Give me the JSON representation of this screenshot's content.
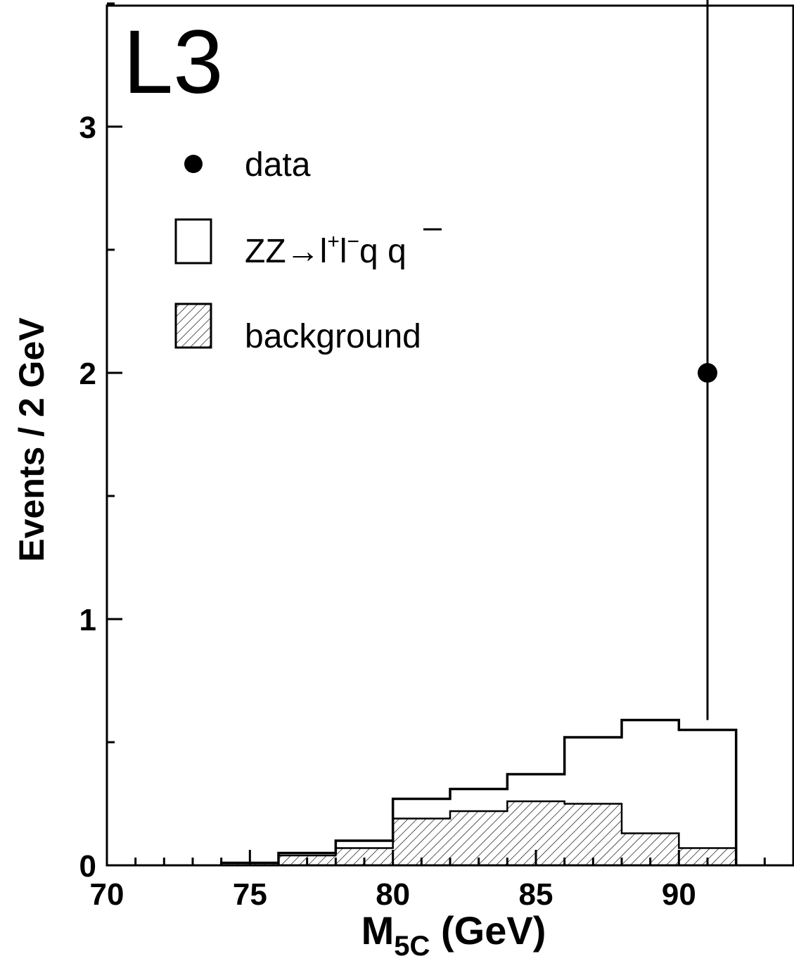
{
  "chart_data": {
    "type": "bar",
    "experiment_label": "L3",
    "xlabel": "M",
    "xlabel_sub": "5C",
    "xlabel_unit": " (GeV)",
    "ylabel": "Events / 2 GeV",
    "xlim": [
      70,
      94
    ],
    "ylim": [
      0,
      3.5
    ],
    "x_ticks": [
      70,
      75,
      80,
      85,
      90
    ],
    "y_ticks": [
      0,
      1,
      2,
      3
    ],
    "grid": false,
    "legend_position": "top-left",
    "legend": {
      "data": "data",
      "signal": {
        "main": "ZZ→l",
        "sup1": "+",
        "mid": "l",
        "sup2": "−",
        "end": "q q",
        "bar_char": "q"
      },
      "background": "background"
    },
    "bin_edges": [
      70,
      72,
      74,
      76,
      78,
      80,
      82,
      84,
      86,
      88,
      90,
      92
    ],
    "series": [
      {
        "name": "ZZ→l+l−q q̄",
        "style": "open",
        "values": [
          0,
          0,
          0.01,
          0.05,
          0.1,
          0.27,
          0.31,
          0.37,
          0.52,
          0.59,
          0.55
        ]
      },
      {
        "name": "background",
        "style": "hatched",
        "values": [
          0,
          0,
          0.01,
          0.04,
          0.07,
          0.19,
          0.22,
          0.26,
          0.25,
          0.13,
          0.07
        ]
      }
    ],
    "data_points": [
      {
        "x": 91,
        "y": 2,
        "err_low": 1.41,
        "err_high": 2.98
      }
    ],
    "colors": {
      "line": "#000000",
      "background": "#ffffff"
    }
  }
}
